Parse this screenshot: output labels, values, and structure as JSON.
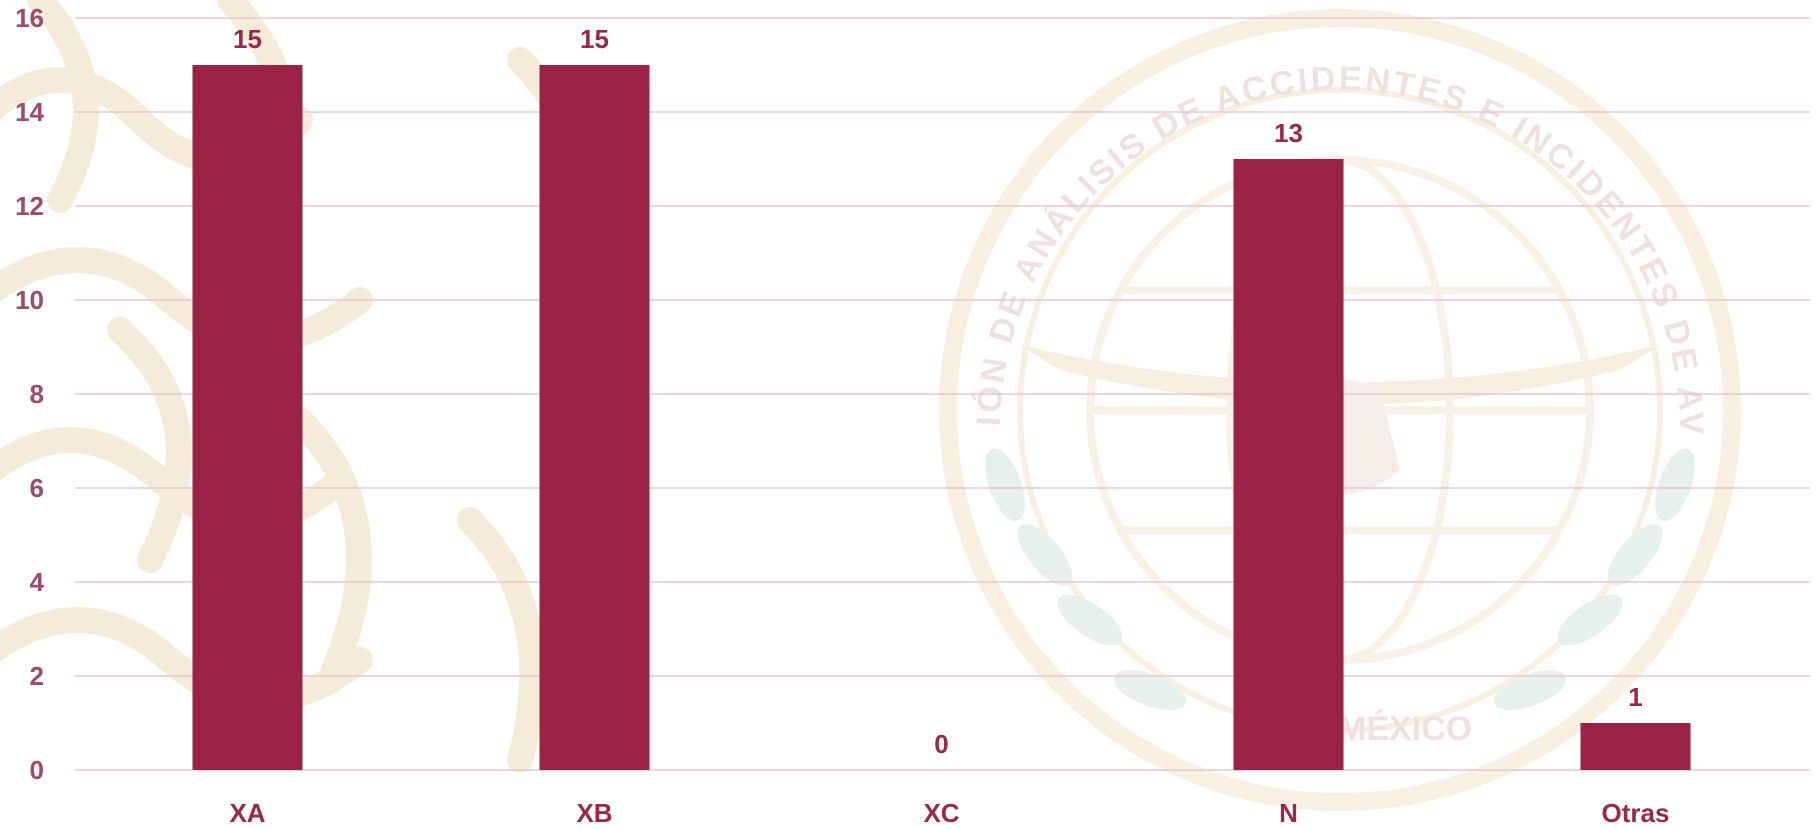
{
  "chart_data": {
    "type": "bar",
    "title": "",
    "xlabel": "",
    "ylabel": "",
    "categories": [
      "XA",
      "XB",
      "XC",
      "N",
      "Otras"
    ],
    "values": [
      15,
      15,
      0,
      13,
      1
    ],
    "ylim": [
      0,
      16
    ],
    "yticks": [
      0,
      2,
      4,
      6,
      8,
      10,
      12,
      14,
      16
    ],
    "grid": true,
    "legend": "none",
    "bar_color": "#9b2346",
    "data_labels": [
      "15",
      "15",
      "0",
      "13",
      "1"
    ]
  },
  "watermark": {
    "seal_text": "DIRECCIÓN DE ANÁLISIS DE ACCIDENTES E INCIDENTES DE AVIACIÓN",
    "seal_bottom_text": "SSCT MÉXICO"
  },
  "colors": {
    "bar": "#9b2346",
    "text": "#9b2848",
    "grid": "#e8c6d0",
    "pattern": "#f4ecd8"
  }
}
